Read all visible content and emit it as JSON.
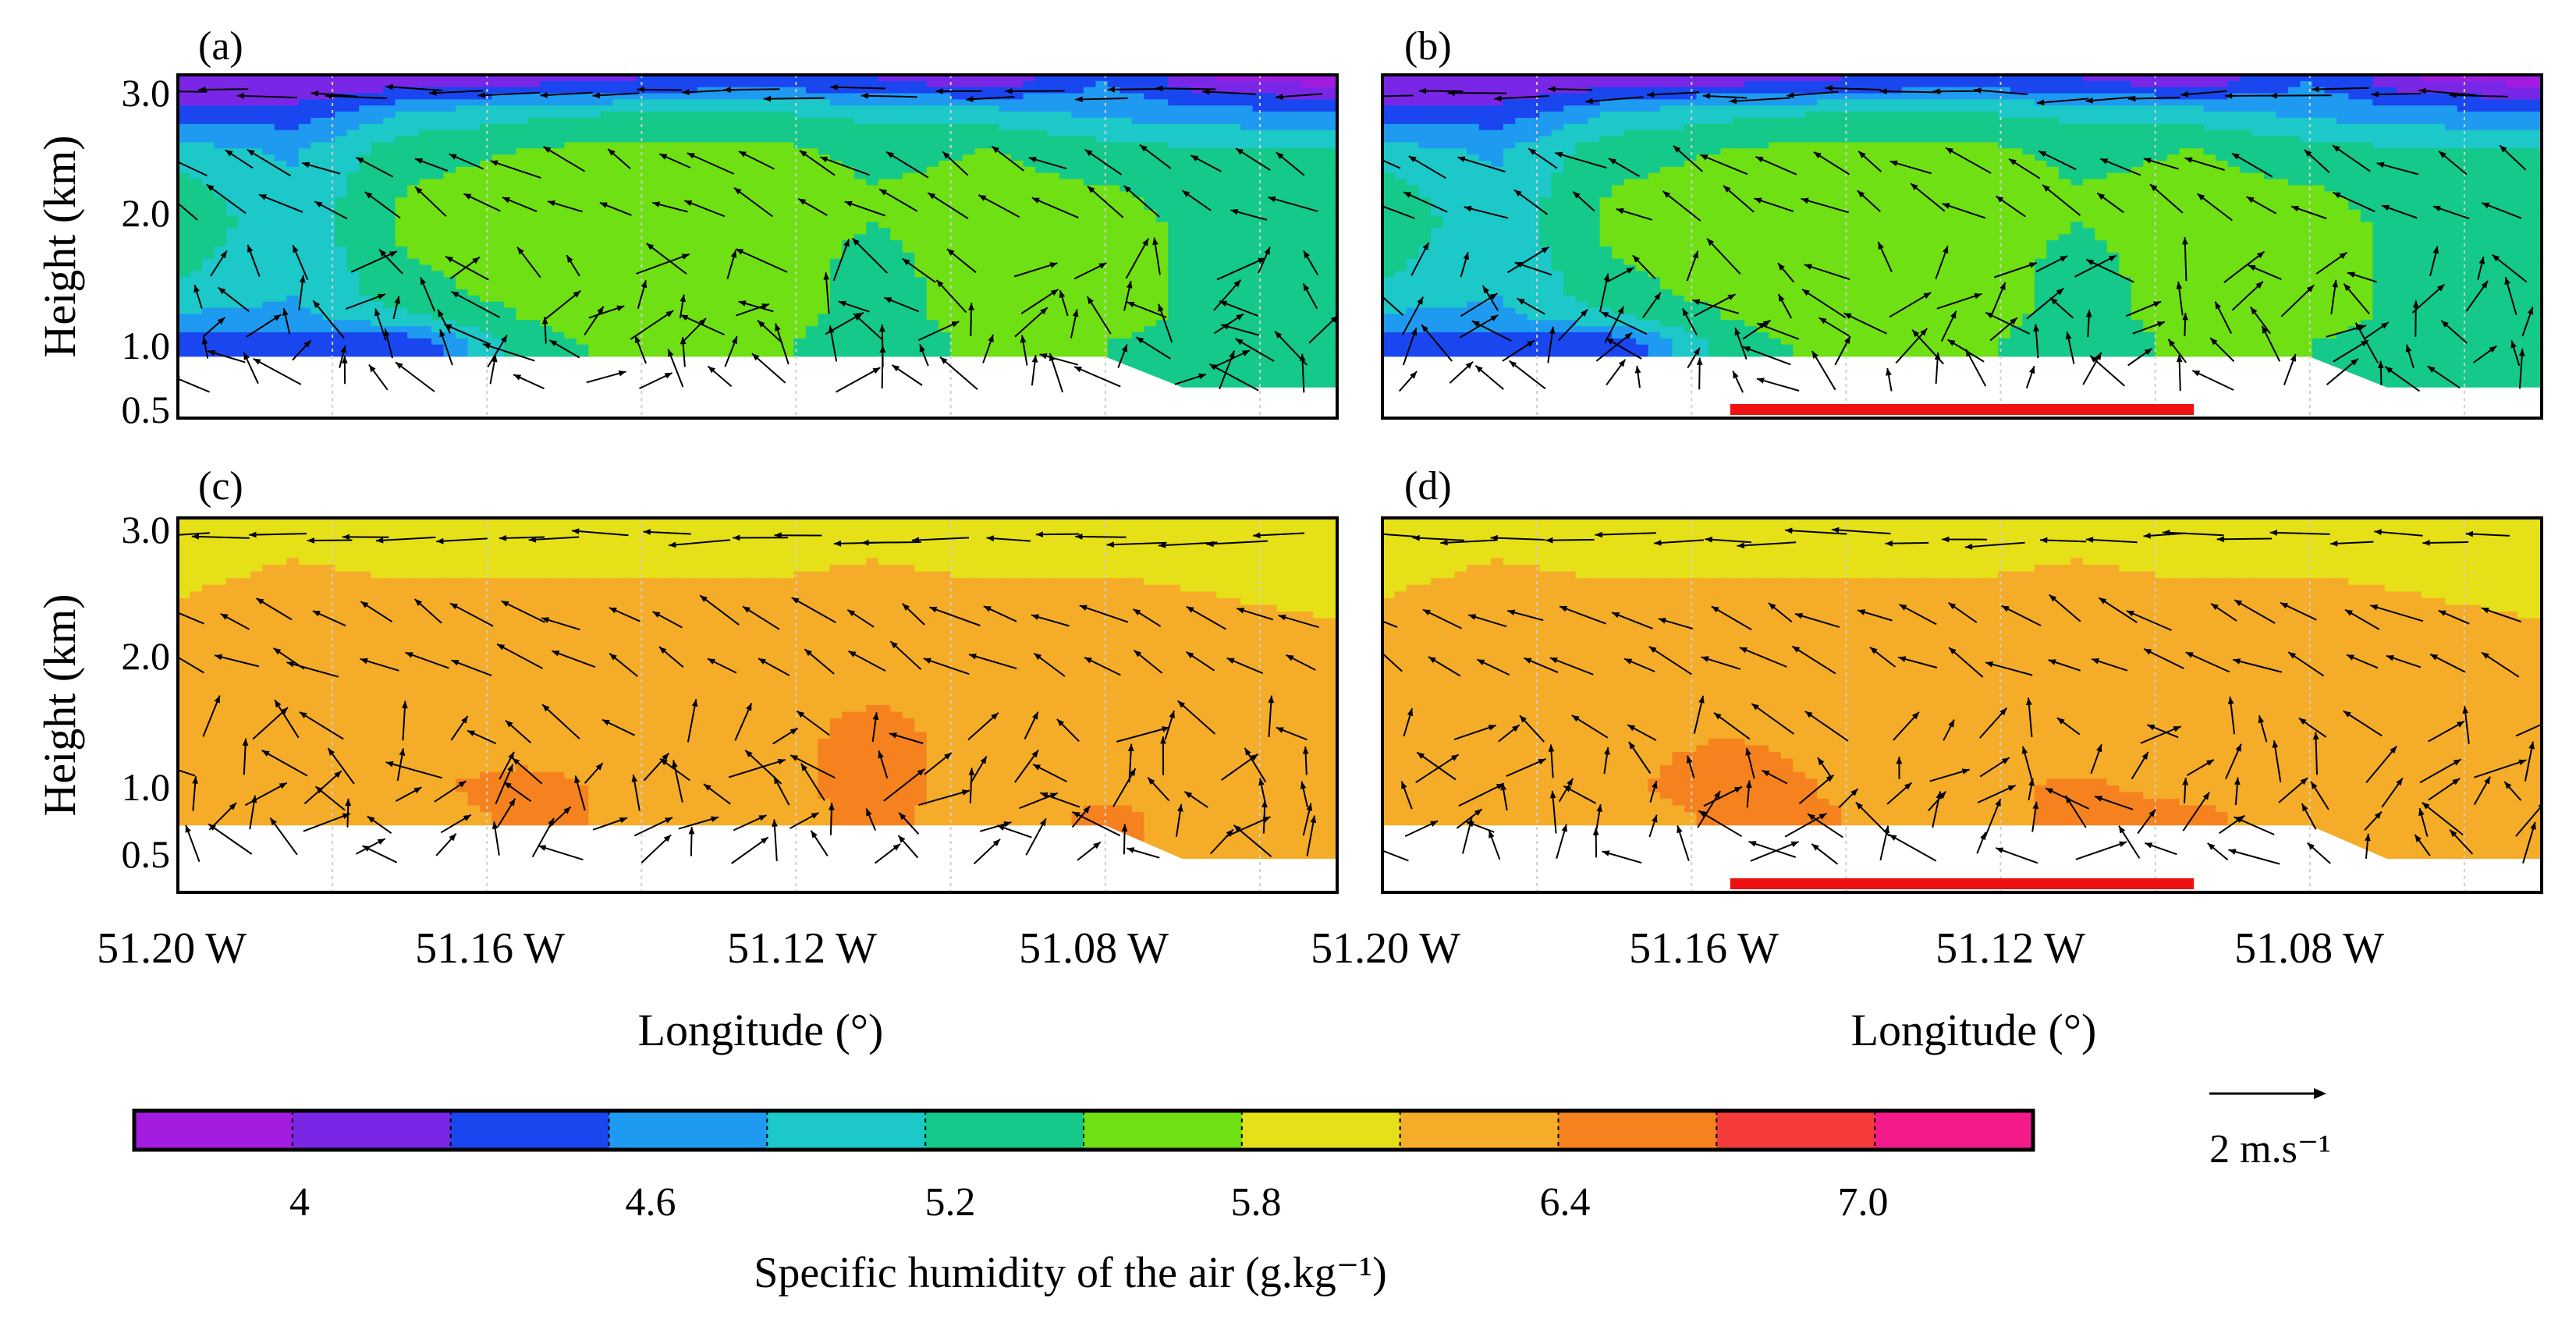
{
  "chart_data": {
    "type": "heatmap",
    "title": "",
    "colorbar": {
      "title": "Specific humidity of the air (g.kg⁻¹)",
      "tick_labels": [
        "4",
        "4.6",
        "5.2",
        "5.8",
        "6.4",
        "7.0"
      ],
      "colors": [
        "#a41be0",
        "#7a26e6",
        "#1a46f0",
        "#1e9bf0",
        "#1cc8c8",
        "#14c98a",
        "#6fe014",
        "#e6e018",
        "#f5ac28",
        "#f5821e",
        "#f53a3a",
        "#f51a8a"
      ],
      "boundaries": [
        3.7,
        4.0,
        4.3,
        4.6,
        4.9,
        5.2,
        5.5,
        5.8,
        6.1,
        6.4,
        6.7,
        7.0,
        7.3
      ]
    },
    "vector_scale": {
      "label": "2 m.s⁻¹",
      "value": 2
    },
    "x_axis": {
      "label": "Longitude (°)",
      "tick_labels": [
        "51.20 W",
        "51.16 W",
        "51.12 W",
        "51.08 W"
      ],
      "range": [
        51.2,
        51.05
      ]
    },
    "y_axis": {
      "label": "Height (km)",
      "tick_labels": [
        "3.0",
        "2.0",
        "1.0",
        "0.5"
      ],
      "range": [
        0.3,
        3.1
      ]
    },
    "panels": [
      {
        "label": "(a)",
        "show_bar": false,
        "profile": [
          {
            "lon": 51.2,
            "q": [
              4.3,
              4.8,
              5.1,
              5.3,
              5.4,
              5.3,
              5.0,
              4.4,
              4.0
            ]
          },
          {
            "lon": 51.185,
            "q": [
              4.3,
              4.8,
              4.9,
              4.95,
              5.0,
              4.95,
              4.85,
              4.4,
              4.0
            ]
          },
          {
            "lon": 51.17,
            "q": [
              4.3,
              5.1,
              5.4,
              5.5,
              5.6,
              5.5,
              5.4,
              4.9,
              4.1
            ]
          },
          {
            "lon": 51.155,
            "q": [
              5.4,
              5.5,
              5.6,
              5.6,
              5.6,
              5.6,
              5.5,
              5.1,
              4.2
            ]
          },
          {
            "lon": 51.14,
            "q": [
              5.6,
              5.6,
              5.7,
              5.7,
              5.7,
              5.7,
              5.6,
              5.2,
              4.3
            ]
          },
          {
            "lon": 51.125,
            "q": [
              5.6,
              5.6,
              5.7,
              5.7,
              5.7,
              5.7,
              5.6,
              5.2,
              4.4
            ]
          },
          {
            "lon": 51.11,
            "q": [
              5.3,
              5.4,
              5.4,
              5.4,
              5.5,
              5.5,
              5.4,
              5.1,
              4.3
            ]
          },
          {
            "lon": 51.095,
            "q": [
              5.6,
              5.6,
              5.6,
              5.7,
              5.7,
              5.6,
              5.5,
              5.0,
              4.1
            ]
          },
          {
            "lon": 51.08,
            "q": [
              5.5,
              5.6,
              5.6,
              5.6,
              5.6,
              5.5,
              5.3,
              4.8,
              4.6
            ]
          },
          {
            "lon": 51.065,
            "q": [
              5.3,
              5.4,
              5.4,
              5.4,
              5.4,
              5.4,
              5.2,
              4.7,
              4.0
            ]
          },
          {
            "lon": 51.05,
            "q": [
              5.3,
              5.4,
              5.4,
              5.4,
              5.4,
              5.4,
              5.2,
              4.6,
              3.9
            ]
          }
        ]
      },
      {
        "label": "(b)",
        "show_bar": true,
        "profile": [
          {
            "lon": 51.2,
            "q": [
              4.3,
              4.8,
              5.1,
              5.3,
              5.4,
              5.3,
              5.0,
              4.4,
              4.0
            ]
          },
          {
            "lon": 51.185,
            "q": [
              4.3,
              4.8,
              4.9,
              4.95,
              5.0,
              4.95,
              4.85,
              4.4,
              4.0
            ]
          },
          {
            "lon": 51.17,
            "q": [
              4.3,
              5.1,
              5.4,
              5.5,
              5.6,
              5.5,
              5.4,
              4.9,
              4.1
            ]
          },
          {
            "lon": 51.155,
            "q": [
              5.4,
              5.5,
              5.6,
              5.6,
              5.6,
              5.6,
              5.5,
              5.1,
              4.2
            ]
          },
          {
            "lon": 51.14,
            "q": [
              5.6,
              5.6,
              5.7,
              5.7,
              5.7,
              5.7,
              5.6,
              5.2,
              4.3
            ]
          },
          {
            "lon": 51.125,
            "q": [
              5.6,
              5.6,
              5.7,
              5.7,
              5.7,
              5.7,
              5.6,
              5.2,
              4.4
            ]
          },
          {
            "lon": 51.11,
            "q": [
              5.3,
              5.4,
              5.4,
              5.4,
              5.5,
              5.5,
              5.4,
              5.1,
              4.3
            ]
          },
          {
            "lon": 51.095,
            "q": [
              5.6,
              5.6,
              5.6,
              5.7,
              5.7,
              5.6,
              5.5,
              5.0,
              4.1
            ]
          },
          {
            "lon": 51.08,
            "q": [
              5.5,
              5.6,
              5.6,
              5.6,
              5.6,
              5.5,
              5.3,
              4.8,
              4.6
            ]
          },
          {
            "lon": 51.065,
            "q": [
              5.3,
              5.4,
              5.4,
              5.4,
              5.4,
              5.4,
              5.2,
              4.7,
              4.0
            ]
          },
          {
            "lon": 51.05,
            "q": [
              5.3,
              5.4,
              5.4,
              5.4,
              5.4,
              5.4,
              5.2,
              4.6,
              3.9
            ]
          }
        ]
      },
      {
        "label": "(c)",
        "show_bar": false,
        "profile": [
          {
            "lon": 51.2,
            "q": [
              6.3,
              6.2,
              6.2,
              6.1,
              6.2,
              6.2,
              6.1,
              6.0,
              5.9
            ]
          },
          {
            "lon": 51.185,
            "q": [
              6.3,
              6.35,
              6.35,
              6.3,
              6.3,
              6.3,
              6.2,
              6.1,
              6.0
            ]
          },
          {
            "lon": 51.17,
            "q": [
              6.3,
              6.35,
              6.3,
              6.3,
              6.3,
              6.3,
              6.2,
              6.0,
              6.0
            ]
          },
          {
            "lon": 51.155,
            "q": [
              6.45,
              6.5,
              6.35,
              6.3,
              6.3,
              6.3,
              6.2,
              6.0,
              5.9
            ]
          },
          {
            "lon": 51.14,
            "q": [
              6.35,
              6.3,
              6.3,
              6.3,
              6.3,
              6.3,
              6.2,
              6.0,
              5.9
            ]
          },
          {
            "lon": 51.125,
            "q": [
              6.3,
              6.3,
              6.3,
              6.3,
              6.3,
              6.3,
              6.2,
              6.0,
              5.9
            ]
          },
          {
            "lon": 51.11,
            "q": [
              6.45,
              6.5,
              6.5,
              6.45,
              6.3,
              6.3,
              6.2,
              6.1,
              5.9
            ]
          },
          {
            "lon": 51.095,
            "q": [
              6.3,
              6.3,
              6.3,
              6.3,
              6.3,
              6.3,
              6.2,
              6.0,
              5.9
            ]
          },
          {
            "lon": 51.08,
            "q": [
              6.45,
              6.3,
              6.3,
              6.3,
              6.3,
              6.3,
              6.2,
              6.0,
              5.9
            ]
          },
          {
            "lon": 51.065,
            "q": [
              6.3,
              6.3,
              6.3,
              6.3,
              6.3,
              6.3,
              6.1,
              6.0,
              5.9
            ]
          },
          {
            "lon": 51.05,
            "q": [
              6.3,
              6.3,
              6.3,
              6.3,
              6.3,
              6.2,
              6.0,
              5.9,
              5.9
            ]
          }
        ]
      },
      {
        "label": "(d)",
        "show_bar": true,
        "profile": [
          {
            "lon": 51.2,
            "q": [
              6.3,
              6.2,
              6.2,
              6.1,
              6.2,
              6.2,
              6.1,
              6.0,
              5.9
            ]
          },
          {
            "lon": 51.185,
            "q": [
              6.3,
              6.35,
              6.35,
              6.3,
              6.3,
              6.3,
              6.2,
              6.1,
              6.0
            ]
          },
          {
            "lon": 51.17,
            "q": [
              6.3,
              6.35,
              6.3,
              6.3,
              6.3,
              6.3,
              6.2,
              6.0,
              6.0
            ]
          },
          {
            "lon": 51.155,
            "q": [
              6.45,
              6.55,
              6.5,
              6.3,
              6.3,
              6.3,
              6.2,
              6.0,
              5.9
            ]
          },
          {
            "lon": 51.14,
            "q": [
              6.4,
              6.35,
              6.3,
              6.3,
              6.3,
              6.3,
              6.2,
              6.0,
              5.9
            ]
          },
          {
            "lon": 51.125,
            "q": [
              6.3,
              6.3,
              6.3,
              6.3,
              6.3,
              6.3,
              6.2,
              6.0,
              5.9
            ]
          },
          {
            "lon": 51.11,
            "q": [
              6.45,
              6.45,
              6.3,
              6.3,
              6.3,
              6.3,
              6.2,
              6.1,
              5.9
            ]
          },
          {
            "lon": 51.095,
            "q": [
              6.45,
              6.3,
              6.3,
              6.3,
              6.3,
              6.3,
              6.2,
              6.0,
              5.9
            ]
          },
          {
            "lon": 51.08,
            "q": [
              6.3,
              6.3,
              6.3,
              6.3,
              6.3,
              6.3,
              6.2,
              6.0,
              5.9
            ]
          },
          {
            "lon": 51.065,
            "q": [
              6.3,
              6.3,
              6.3,
              6.3,
              6.3,
              6.3,
              6.1,
              6.0,
              5.9
            ]
          },
          {
            "lon": 51.05,
            "q": [
              6.3,
              6.3,
              6.3,
              6.3,
              6.3,
              6.2,
              6.0,
              5.9,
              5.9
            ]
          }
        ]
      }
    ],
    "profile_heights_km": [
      0.9,
      1.1,
      1.3,
      1.6,
      1.9,
      2.2,
      2.5,
      2.8,
      3.05
    ],
    "masked_region": {
      "description": "no data near surface",
      "ground": [
        {
          "lon": 51.2,
          "top_km": 0.8
        },
        {
          "lon": 51.08,
          "top_km": 0.8
        },
        {
          "lon": 51.07,
          "top_km": 0.55
        },
        {
          "lon": 51.05,
          "top_km": 0.55
        }
      ]
    },
    "bar": {
      "lon_range": [
        51.155,
        51.095
      ],
      "color": "#ee1111"
    }
  }
}
